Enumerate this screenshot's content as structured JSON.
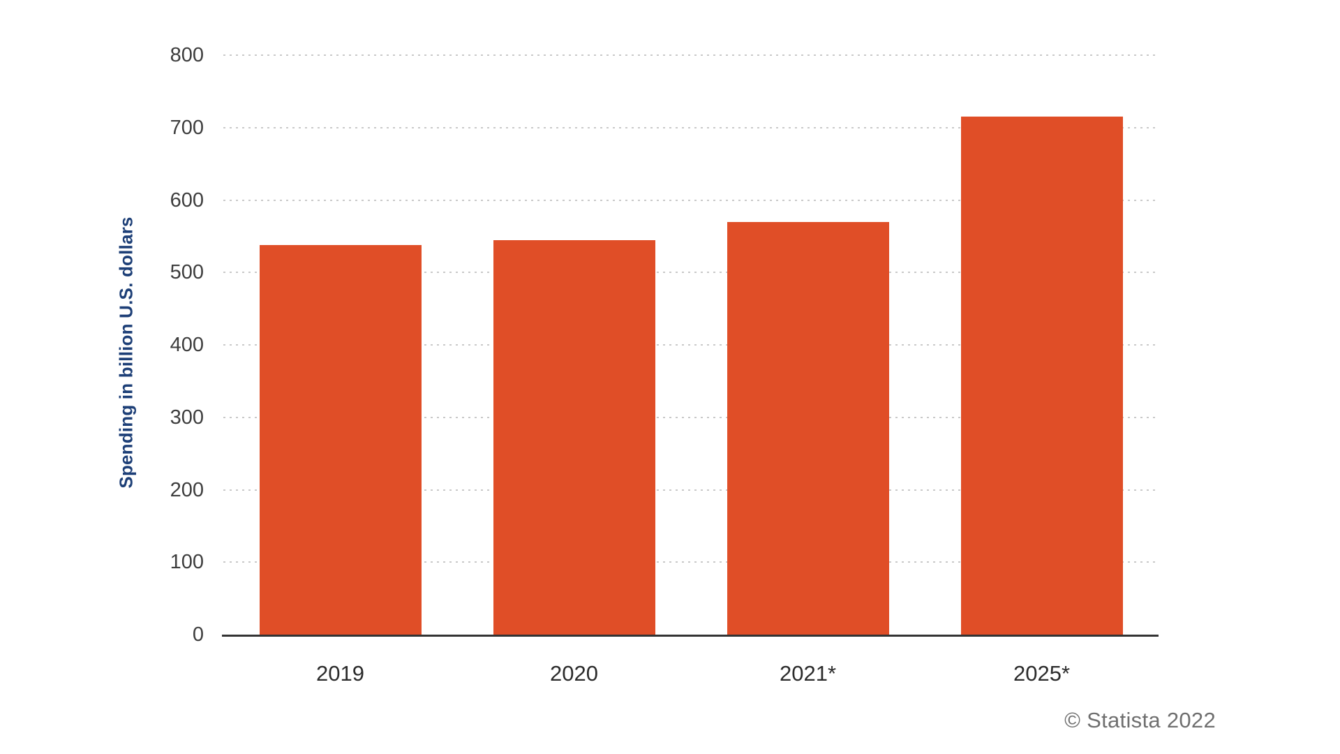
{
  "chart_data": {
    "type": "bar",
    "categories": [
      "2019",
      "2020",
      "2021*",
      "2025*"
    ],
    "values": [
      538,
      545,
      570,
      715
    ],
    "title": "",
    "xlabel": "",
    "ylabel": "Spending in billion U.S. dollars",
    "ylim": [
      0,
      800
    ],
    "yticks": [
      0,
      100,
      200,
      300,
      400,
      500,
      600,
      700,
      800
    ],
    "grid": "horizontal-dotted",
    "legend_position": "none",
    "bar_color": "#e04e27"
  },
  "colors": {
    "bar": "#e04e27",
    "axis_title": "#1d3f77",
    "y_tick_label": "#3d3d3d",
    "x_tick_label": "#2b2b2b",
    "gridline": "#c9c9c9",
    "axis_line": "#333333",
    "credit": "#6f6f6f",
    "background": "#ffffff"
  },
  "credit": "© Statista 2022"
}
